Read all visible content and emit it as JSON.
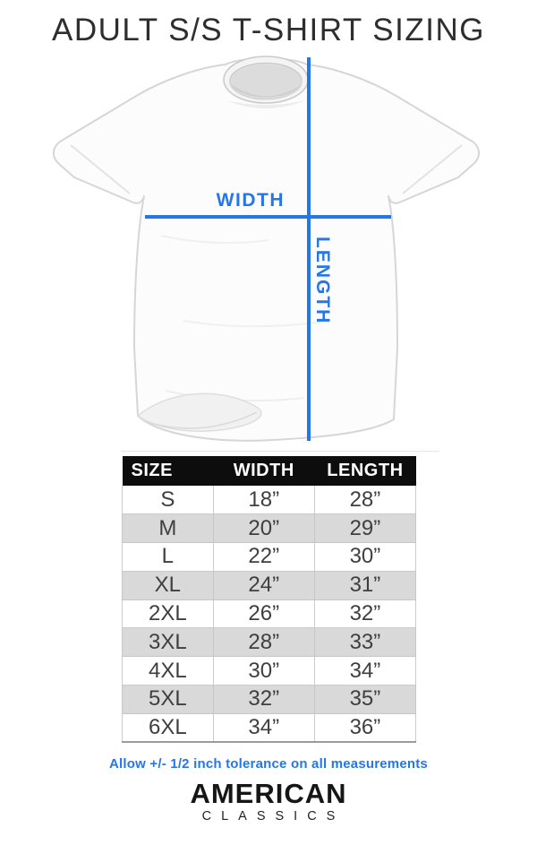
{
  "title": "ADULT S/S T-SHIRT SIZING",
  "diagram": {
    "width_label": "WIDTH",
    "length_label": "LENGTH"
  },
  "chart_data": {
    "type": "table",
    "title": "ADULT S/S T-SHIRT SIZING",
    "columns": [
      "SIZE",
      "WIDTH",
      "LENGTH"
    ],
    "rows": [
      [
        "S",
        "18”",
        "28”"
      ],
      [
        "M",
        "20”",
        "29”"
      ],
      [
        "L",
        "22”",
        "30”"
      ],
      [
        "XL",
        "24”",
        "31”"
      ],
      [
        "2XL",
        "26”",
        "32”"
      ],
      [
        "3XL",
        "28”",
        "33”"
      ],
      [
        "4XL",
        "30”",
        "34”"
      ],
      [
        "5XL",
        "32”",
        "35”"
      ],
      [
        "6XL",
        "34”",
        "36”"
      ]
    ],
    "units": "inches",
    "note": "Allow +/- 1/2 inch tolerance on all measurements"
  },
  "footer": {
    "tolerance_note": "Allow +/- 1/2 inch tolerance on all measurements"
  },
  "brand": {
    "line1": "AMERICAN",
    "line2": "CLASSICS"
  },
  "colors": {
    "accent_blue": "#2577e8",
    "header_bg": "#0d0d0d",
    "header_text": "#ffffff",
    "alt_row_bg": "#d9d9d9",
    "row_text": "#3f3f3f",
    "title_text": "#2e2e2e"
  }
}
